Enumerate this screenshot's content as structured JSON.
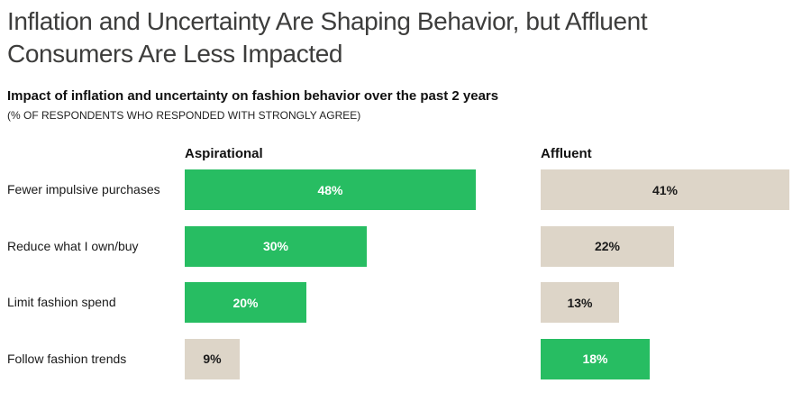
{
  "slide": {
    "title_line1": "Inflation and Uncertainty Are Shaping Behavior, but Affluent",
    "title_line2": "Consumers Are Less Impacted"
  },
  "chart_data": {
    "type": "bar",
    "orientation": "horizontal",
    "title": "Impact of inflation and uncertainty on fashion behavior over the past 2 years",
    "subtitle": "(% OF RESPONDENTS WHO RESPONDED WITH STRONGLY AGREE)",
    "categories": [
      "Fewer impulsive purchases",
      "Reduce what I own/buy",
      "Limit fashion spend",
      "Follow fashion trends"
    ],
    "series": [
      {
        "name": "Aspirational",
        "values": [
          48,
          30,
          20,
          9
        ],
        "bar_styles": [
          "green",
          "green",
          "green",
          "beige"
        ]
      },
      {
        "name": "Affluent",
        "values": [
          41,
          22,
          13,
          18
        ],
        "bar_styles": [
          "beige",
          "beige",
          "beige",
          "green"
        ]
      }
    ],
    "value_suffix": "%",
    "xlim": [
      0,
      50
    ],
    "legend_position": "column-headers",
    "grid": false,
    "colors": {
      "green": "#27bd62",
      "beige": "#ddd5c8",
      "label_on_green": "#ffffff",
      "label_on_beige": "#1a1a1a"
    }
  }
}
